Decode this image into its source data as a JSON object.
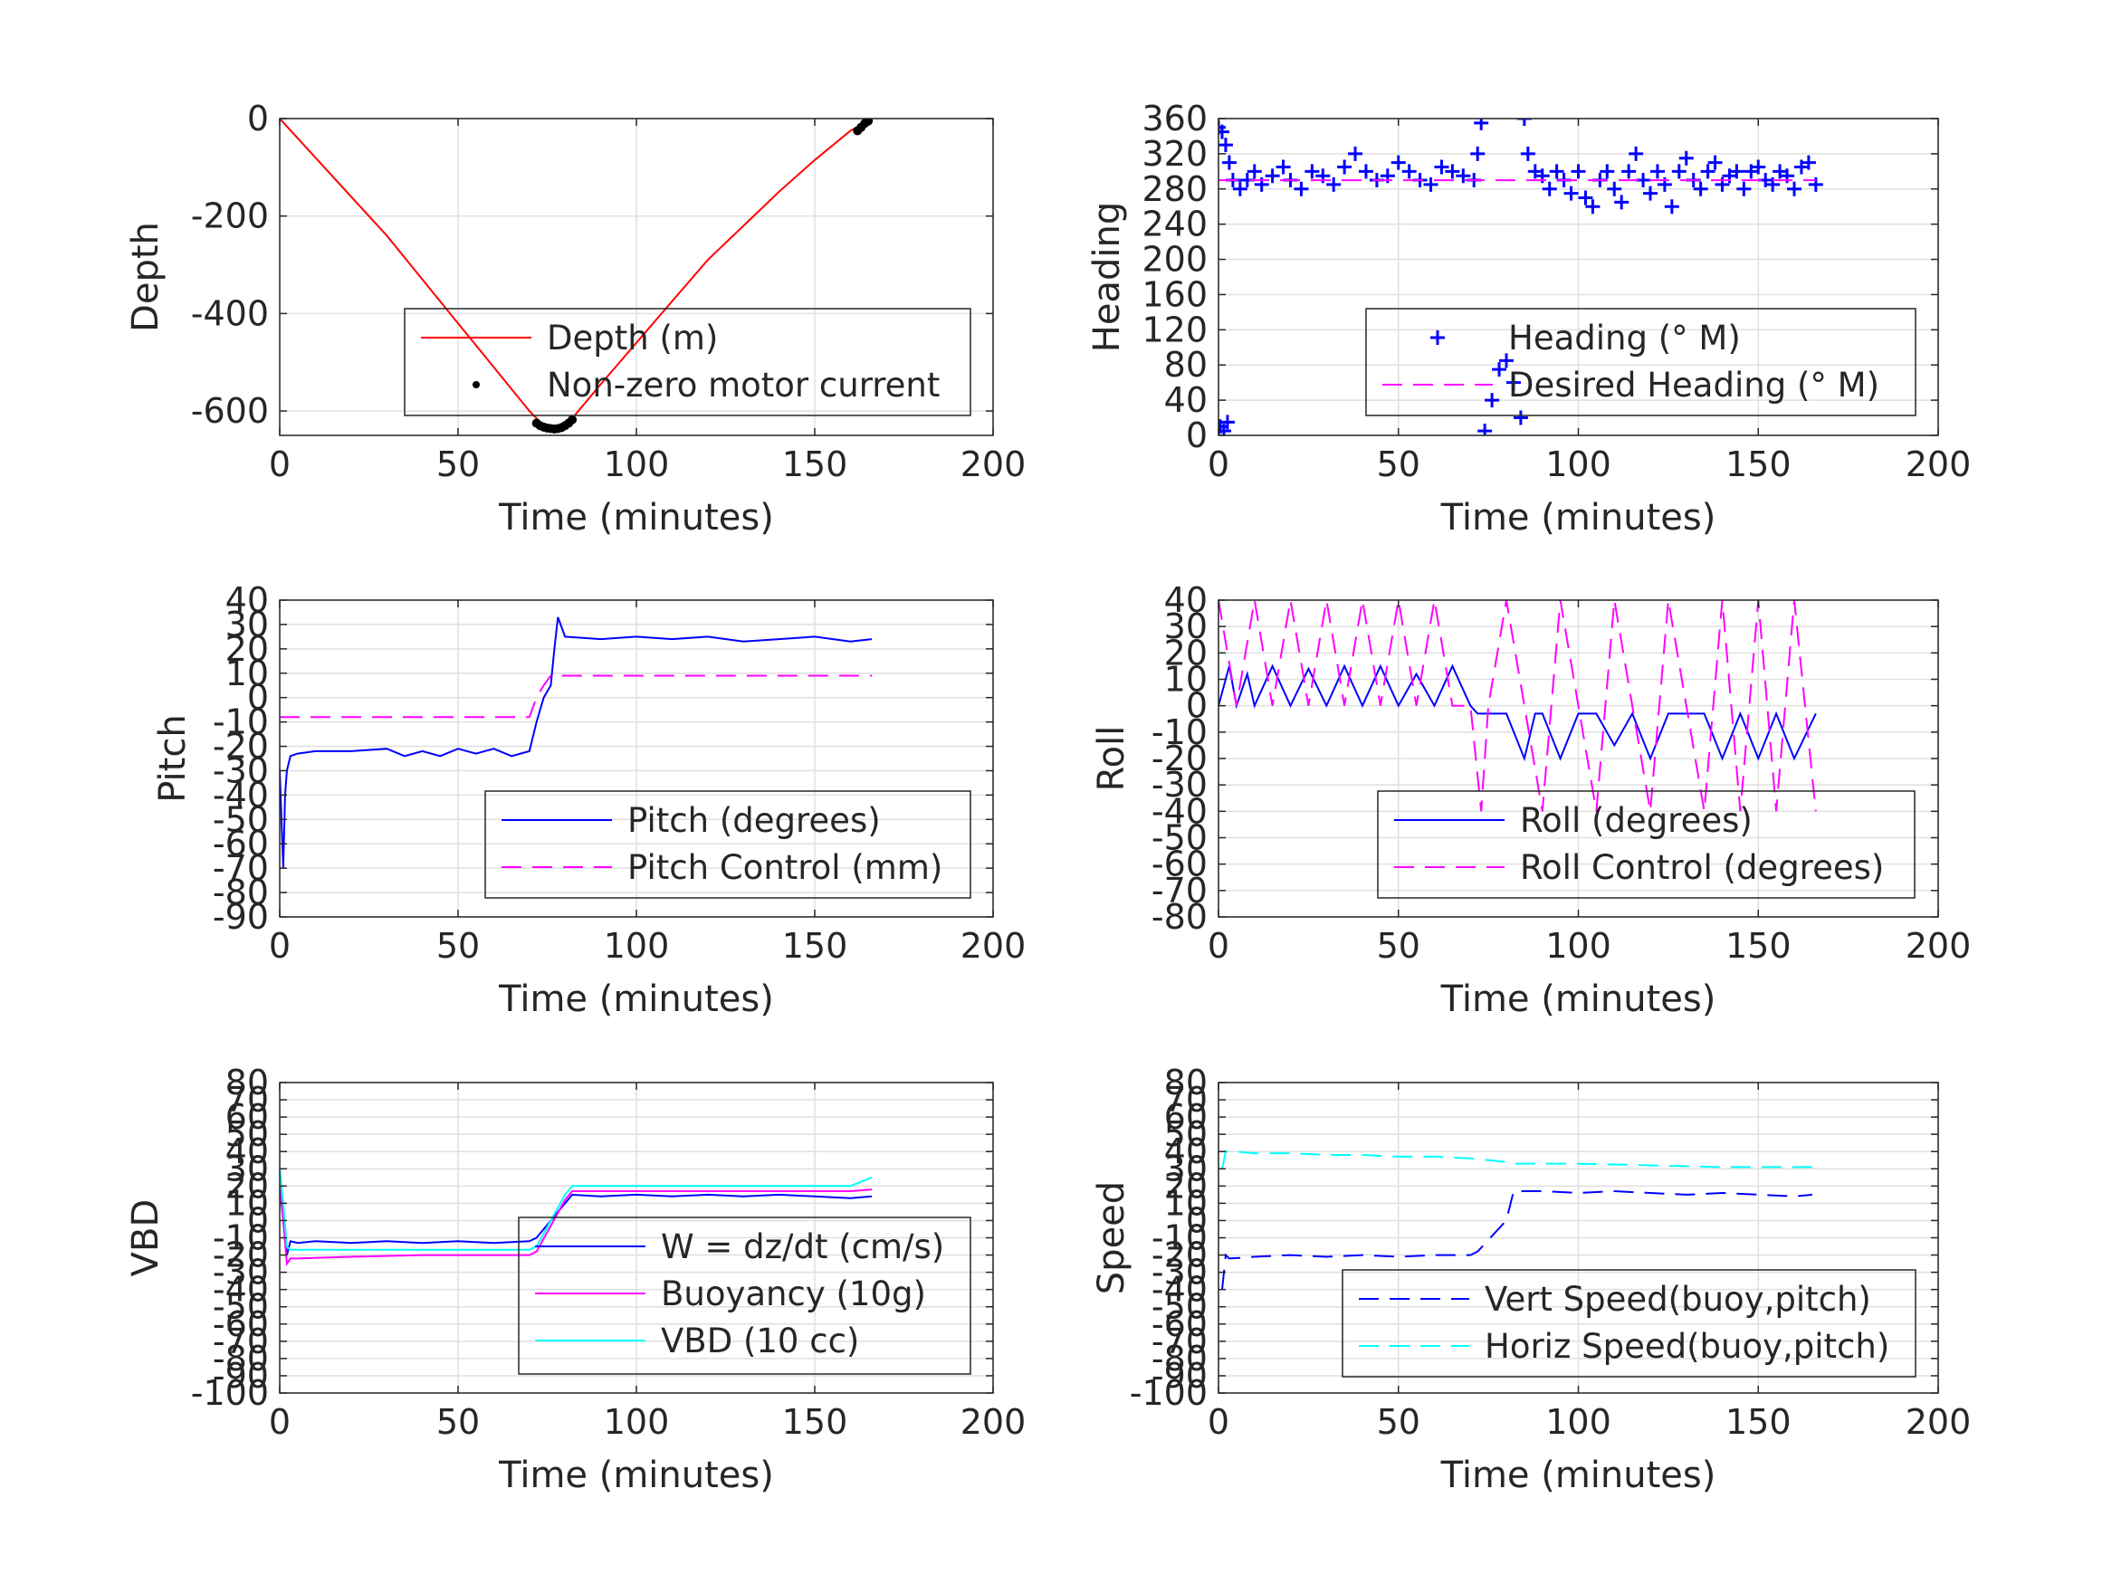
{
  "colors": {
    "depth": "#ff0000",
    "motor": "#000000",
    "blue": "#0000ff",
    "magenta": "#ff00ff",
    "cyan": "#00ffff",
    "grid": "#dfdfdf",
    "axis": "#262626"
  },
  "chart_data": [
    {
      "id": "depth",
      "type": "line",
      "xlabel": "Time (minutes)",
      "ylabel": "Depth",
      "xlim": [
        0,
        200
      ],
      "ylim": [
        -650,
        0
      ],
      "xticks": [
        0,
        50,
        100,
        150,
        200
      ],
      "yticks": [
        -600,
        -400,
        -200,
        0
      ],
      "grid": true,
      "legend_placement": "lower-right",
      "series": [
        {
          "name": "Depth (m)",
          "style": "solid",
          "color": "#ff0000",
          "x": [
            0,
            10,
            20,
            30,
            40,
            50,
            60,
            70,
            74,
            78,
            82,
            90,
            100,
            110,
            120,
            130,
            140,
            150,
            160,
            165
          ],
          "y": [
            0,
            -80,
            -160,
            -240,
            -330,
            -420,
            -510,
            -600,
            -630,
            -637,
            -615,
            -545,
            -460,
            -375,
            -290,
            -220,
            -150,
            -85,
            -25,
            -5
          ]
        },
        {
          "name": "Non-zero motor current",
          "style": "dots",
          "color": "#000000",
          "x": [
            72,
            73,
            74,
            75,
            76,
            77,
            78,
            79,
            80,
            81,
            82,
            162,
            163,
            164,
            165
          ],
          "y": [
            -625,
            -630,
            -633,
            -635,
            -636,
            -637,
            -636,
            -634,
            -630,
            -625,
            -618,
            -25,
            -18,
            -10,
            -5
          ]
        }
      ]
    },
    {
      "id": "heading",
      "type": "scatter",
      "xlabel": "Time (minutes)",
      "ylabel": "Heading",
      "xlim": [
        0,
        200
      ],
      "ylim": [
        0,
        360
      ],
      "xticks": [
        0,
        50,
        100,
        150,
        200
      ],
      "yticks": [
        0,
        40,
        80,
        120,
        160,
        200,
        240,
        280,
        320,
        360
      ],
      "grid": true,
      "legend_placement": "lower-right",
      "series": [
        {
          "name": "Heading (° M)",
          "style": "plus",
          "color": "#0000ff",
          "x": [
            0,
            1,
            2,
            3,
            4,
            6,
            8,
            10,
            12,
            15,
            18,
            20,
            23,
            26,
            29,
            32,
            35,
            38,
            41,
            44,
            47,
            50,
            53,
            56,
            59,
            62,
            65,
            68,
            71,
            72,
            73,
            74,
            76,
            78,
            80,
            82,
            84,
            85,
            86,
            88,
            90,
            92,
            94,
            96,
            98,
            100,
            102,
            104,
            106,
            108,
            110,
            112,
            114,
            116,
            118,
            120,
            122,
            124,
            126,
            128,
            130,
            132,
            134,
            136,
            138,
            140,
            142,
            144,
            146,
            148,
            150,
            152,
            154,
            156,
            158,
            160,
            162,
            164,
            166,
            0.5,
            1.5,
            2.5
          ],
          "y": [
            350,
            345,
            330,
            310,
            290,
            280,
            290,
            300,
            285,
            295,
            305,
            290,
            280,
            300,
            295,
            285,
            305,
            320,
            300,
            290,
            295,
            310,
            300,
            290,
            285,
            305,
            300,
            295,
            290,
            320,
            355,
            5,
            40,
            75,
            85,
            60,
            20,
            360,
            320,
            300,
            295,
            280,
            300,
            290,
            275,
            300,
            270,
            260,
            290,
            300,
            280,
            265,
            300,
            320,
            290,
            275,
            300,
            285,
            260,
            300,
            315,
            290,
            280,
            300,
            310,
            285,
            295,
            300,
            280,
            300,
            305,
            290,
            285,
            300,
            295,
            280,
            305,
            310,
            285,
            10,
            5,
            15
          ]
        },
        {
          "name": "Desired Heading (° M)",
          "style": "dashed",
          "color": "#ff00ff",
          "x": [
            0,
            72,
            84,
            166
          ],
          "y": [
            290,
            290,
            290,
            290
          ]
        }
      ]
    },
    {
      "id": "pitch",
      "type": "line",
      "xlabel": "Time (minutes)",
      "ylabel": "Pitch",
      "xlim": [
        0,
        200
      ],
      "ylim": [
        -90,
        40
      ],
      "xticks": [
        0,
        50,
        100,
        150,
        200
      ],
      "yticks": [
        -90,
        -80,
        -70,
        -60,
        -50,
        -40,
        -30,
        -20,
        -10,
        0,
        10,
        20,
        30,
        40
      ],
      "grid": true,
      "legend_placement": "lower-right",
      "series": [
        {
          "name": "Pitch (degrees)",
          "style": "solid",
          "color": "#0000ff",
          "x": [
            0,
            1,
            1.5,
            2,
            3,
            5,
            10,
            20,
            30,
            35,
            40,
            45,
            50,
            55,
            60,
            65,
            70,
            72,
            74,
            76,
            77,
            78,
            80,
            90,
            100,
            110,
            120,
            130,
            140,
            150,
            160,
            166
          ],
          "y": [
            -30,
            -70,
            -40,
            -30,
            -24,
            -23,
            -22,
            -22,
            -21,
            -24,
            -22,
            -24,
            -21,
            -23,
            -21,
            -24,
            -22,
            -10,
            0,
            5,
            20,
            33,
            25,
            24,
            25,
            24,
            25,
            23,
            24,
            25,
            23,
            24
          ]
        },
        {
          "name": "Pitch Control (mm)",
          "style": "dashed",
          "color": "#ff00ff",
          "x": [
            0,
            68,
            70,
            72,
            74,
            76,
            166
          ],
          "y": [
            -8,
            -8,
            -8,
            0,
            5,
            9,
            9
          ]
        }
      ]
    },
    {
      "id": "roll",
      "type": "line",
      "xlabel": "Time (minutes)",
      "ylabel": "Roll",
      "xlim": [
        0,
        200
      ],
      "ylim": [
        -80,
        40
      ],
      "xticks": [
        0,
        50,
        100,
        150,
        200
      ],
      "yticks": [
        -80,
        -70,
        -60,
        -50,
        -40,
        -30,
        -20,
        -10,
        0,
        10,
        20,
        30,
        40
      ],
      "grid": true,
      "legend_placement": "lower-right",
      "series": [
        {
          "name": "Roll (degrees)",
          "style": "solid",
          "color": "#0000ff",
          "x": [
            0,
            3,
            5,
            8,
            10,
            15,
            20,
            25,
            30,
            35,
            40,
            45,
            50,
            55,
            60,
            65,
            70,
            72,
            80,
            85,
            88,
            90,
            95,
            100,
            105,
            110,
            115,
            120,
            125,
            130,
            135,
            140,
            145,
            150,
            155,
            160,
            166
          ],
          "y": [
            0,
            15,
            0,
            12,
            0,
            15,
            0,
            14,
            0,
            15,
            0,
            15,
            0,
            12,
            0,
            15,
            0,
            -3,
            -3,
            -20,
            -3,
            -3,
            -20,
            -3,
            -3,
            -15,
            -3,
            -20,
            -3,
            -3,
            -3,
            -20,
            -3,
            -20,
            -3,
            -20,
            -3
          ]
        },
        {
          "name": "Roll Control (degrees)",
          "style": "dashed",
          "color": "#ff00ff",
          "x": [
            0,
            5,
            10,
            15,
            20,
            25,
            30,
            35,
            40,
            45,
            50,
            55,
            60,
            65,
            70,
            73,
            75,
            80,
            85,
            90,
            95,
            100,
            105,
            110,
            115,
            120,
            125,
            130,
            135,
            140,
            145,
            150,
            155,
            160,
            166
          ],
          "y": [
            40,
            0,
            40,
            0,
            40,
            0,
            40,
            0,
            40,
            0,
            40,
            0,
            40,
            0,
            0,
            -40,
            0,
            40,
            0,
            -40,
            40,
            0,
            -40,
            40,
            0,
            -40,
            40,
            0,
            -40,
            40,
            -40,
            40,
            -40,
            40,
            -40
          ]
        }
      ]
    },
    {
      "id": "vbd",
      "type": "line",
      "xlabel": "Time (minutes)",
      "ylabel": "VBD",
      "xlim": [
        0,
        200
      ],
      "ylim": [
        -100,
        80
      ],
      "xticks": [
        0,
        50,
        100,
        150,
        200
      ],
      "yticks": [
        -100,
        -90,
        -80,
        -70,
        -60,
        -50,
        -40,
        -30,
        -20,
        -10,
        0,
        10,
        20,
        30,
        40,
        50,
        60,
        70,
        80
      ],
      "grid": true,
      "legend_placement": "lower-right",
      "series": [
        {
          "name": "W = dz/dt (cm/s)",
          "style": "solid",
          "color": "#0000ff",
          "x": [
            0,
            1,
            2,
            3,
            5,
            10,
            20,
            30,
            40,
            50,
            60,
            70,
            72,
            80,
            82,
            90,
            100,
            110,
            120,
            130,
            140,
            150,
            160,
            166
          ],
          "y": [
            20,
            0,
            -20,
            -12,
            -13,
            -12,
            -13,
            -12,
            -13,
            -12,
            -13,
            -12,
            -10,
            10,
            15,
            14,
            15,
            14,
            15,
            14,
            15,
            14,
            13,
            14
          ]
        },
        {
          "name": "Buoyancy (10g)",
          "style": "solid",
          "color": "#ff00ff",
          "x": [
            0,
            1,
            2,
            3,
            5,
            20,
            40,
            60,
            70,
            72,
            80,
            82,
            100,
            120,
            140,
            160,
            166
          ],
          "y": [
            20,
            0,
            -25,
            -22,
            -22,
            -21,
            -20,
            -20,
            -20,
            -18,
            12,
            17,
            17,
            17,
            17,
            17,
            18
          ]
        },
        {
          "name": "VBD (10 cc)",
          "style": "solid",
          "color": "#00ffff",
          "x": [
            0,
            1,
            2,
            3,
            5,
            20,
            40,
            60,
            70,
            72,
            80,
            82,
            100,
            120,
            140,
            160,
            166
          ],
          "y": [
            30,
            10,
            -15,
            -17,
            -17,
            -17,
            -17,
            -17,
            -17,
            -15,
            15,
            20,
            20,
            20,
            20,
            20,
            25
          ]
        }
      ]
    },
    {
      "id": "speed",
      "type": "line",
      "xlabel": "Time (minutes)",
      "ylabel": "Speed",
      "xlim": [
        0,
        200
      ],
      "ylim": [
        -100,
        80
      ],
      "xticks": [
        0,
        50,
        100,
        150,
        200
      ],
      "yticks": [
        -100,
        -90,
        -80,
        -70,
        -60,
        -50,
        -40,
        -30,
        -20,
        -10,
        0,
        10,
        20,
        30,
        40,
        50,
        60,
        70,
        80
      ],
      "grid": true,
      "legend_placement": "lower-right",
      "series": [
        {
          "name": "Vert Speed(buoy,pitch)",
          "style": "dashed",
          "color": "#0000ff",
          "x": [
            1,
            2,
            3,
            10,
            20,
            30,
            40,
            50,
            60,
            70,
            72,
            80,
            82,
            90,
            100,
            110,
            120,
            130,
            140,
            150,
            160,
            165
          ],
          "y": [
            -40,
            -20,
            -22,
            -21,
            -20,
            -21,
            -20,
            -21,
            -20,
            -20,
            -18,
            0,
            17,
            17,
            16,
            17,
            16,
            15,
            16,
            15,
            14,
            15
          ]
        },
        {
          "name": "Horiz Speed(buoy,pitch)",
          "style": "dashed",
          "color": "#00ffff",
          "x": [
            1,
            2,
            5,
            10,
            20,
            30,
            40,
            50,
            60,
            70,
            80,
            82,
            100,
            120,
            140,
            160,
            165
          ],
          "y": [
            30,
            40,
            40,
            39,
            39,
            38,
            38,
            37,
            37,
            36,
            34,
            33,
            33,
            32,
            31,
            31,
            31
          ]
        }
      ]
    }
  ]
}
